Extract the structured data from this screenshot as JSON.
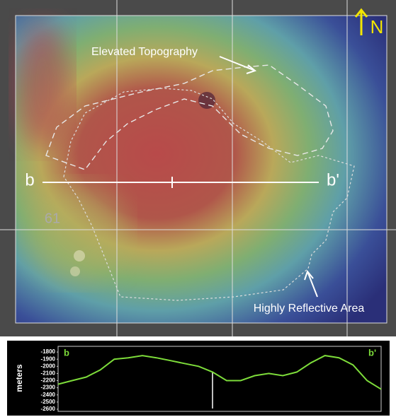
{
  "map": {
    "labels": {
      "elevated": "Elevated Topography",
      "reflective": "Highly Reflective Area",
      "b_start": "b",
      "b_end": "b'",
      "crater": "61",
      "north": "N"
    }
  },
  "chart_data": {
    "type": "line",
    "y_label": "meters",
    "start_label": "b",
    "end_label": "b'",
    "values": [
      -2250,
      -2200,
      -2150,
      -2050,
      -1900,
      -1880,
      -1850,
      -1880,
      -1920,
      -1960,
      -2000,
      -2080,
      -2200,
      -2200,
      -2130,
      -2100,
      -2130,
      -2080,
      -1950,
      -1850,
      -1880,
      -1980,
      -2200,
      -2320
    ],
    "color": "#7ddc3a",
    "ylim": [
      -2630,
      -1720
    ],
    "yticks": [
      -1800,
      -1900,
      -2000,
      -2100,
      -2200,
      -2300,
      -2400,
      -2500,
      -2600
    ]
  }
}
